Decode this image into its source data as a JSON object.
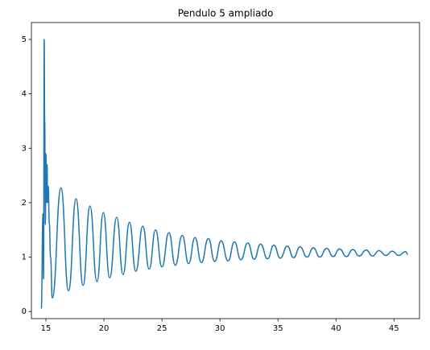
{
  "chart_data": {
    "type": "line",
    "title": "Pendulo 5 ampliado",
    "x": [
      14.6,
      14.75,
      14.8,
      14.85,
      14.9,
      14.95,
      15.0,
      15.05,
      15.1,
      15.15,
      15.2,
      15.3,
      15.4,
      15.55,
      16.3,
      16.95,
      17.6,
      18.2,
      18.8,
      19.4,
      19.95,
      20.5,
      21.1,
      21.65,
      22.2,
      22.75,
      23.35,
      23.9,
      24.45,
      25.0,
      25.6,
      26.15,
      26.75,
      27.3,
      27.85,
      28.4,
      29.0,
      29.55,
      30.1,
      30.7,
      31.25,
      31.8,
      32.4,
      32.95,
      33.5,
      34.1,
      34.65,
      35.2,
      35.8,
      36.35,
      36.9,
      37.5,
      38.05,
      38.6,
      39.2,
      39.75,
      40.3,
      40.9,
      41.45,
      42.0,
      42.6,
      43.15,
      43.7,
      44.3,
      44.85,
      45.4,
      46.0,
      46.2
    ],
    "series": [
      {
        "color": "#1f77b4",
        "values": [
          0.05,
          1.8,
          0.6,
          5.0,
          3.5,
          1.6,
          2.9,
          2.0,
          2.7,
          2.0,
          2.3,
          1.6,
          1.0,
          0.25,
          2.27,
          0.38,
          2.07,
          0.48,
          1.94,
          0.55,
          1.82,
          0.62,
          1.73,
          0.68,
          1.64,
          0.74,
          1.57,
          0.78,
          1.5,
          0.82,
          1.45,
          0.85,
          1.4,
          0.88,
          1.36,
          0.9,
          1.34,
          0.92,
          1.3,
          0.93,
          1.28,
          0.95,
          1.26,
          0.96,
          1.24,
          0.97,
          1.22,
          0.98,
          1.2,
          0.99,
          1.19,
          1.0,
          1.17,
          1.0,
          1.16,
          1.01,
          1.15,
          1.01,
          1.14,
          1.02,
          1.13,
          1.02,
          1.12,
          1.03,
          1.11,
          1.03,
          1.1,
          1.05
        ]
      }
    ],
    "xlim": [
      13.75,
      47.2
    ],
    "xticks": [
      15,
      20,
      25,
      30,
      35,
      40,
      45
    ],
    "ylim": [
      -0.13,
      5.31
    ],
    "yticks": [
      0,
      1,
      2,
      3,
      4,
      5
    ],
    "grid": false
  }
}
